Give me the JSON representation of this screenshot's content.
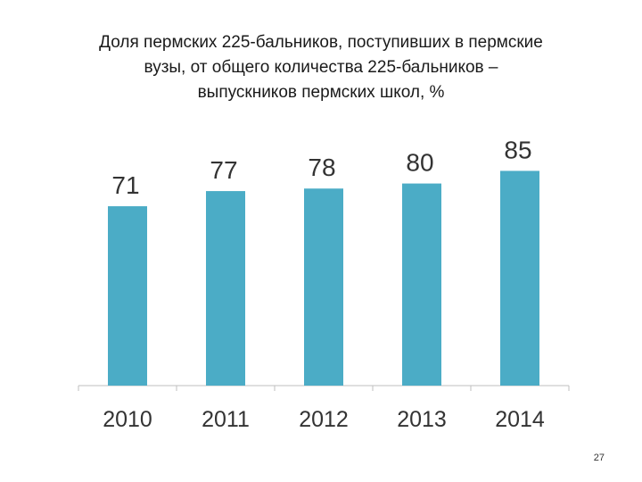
{
  "title_lines": [
    "Доля пермских 225-бальников, поступивших в пермские",
    "вузы, от общего количества 225-бальников –",
    "выпускников пермских школ, %"
  ],
  "page_number": "27",
  "chart_data": {
    "type": "bar",
    "categories": [
      "2010",
      "2011",
      "2012",
      "2013",
      "2014"
    ],
    "values": [
      71,
      77,
      78,
      80,
      85
    ],
    "data_labels": [
      "71",
      "77",
      "78",
      "80",
      "85"
    ],
    "ylim": [
      0,
      100
    ],
    "grid": false,
    "legend": "none",
    "bar_color": "#4bacc6",
    "axis_color": "#bfbfbf"
  }
}
